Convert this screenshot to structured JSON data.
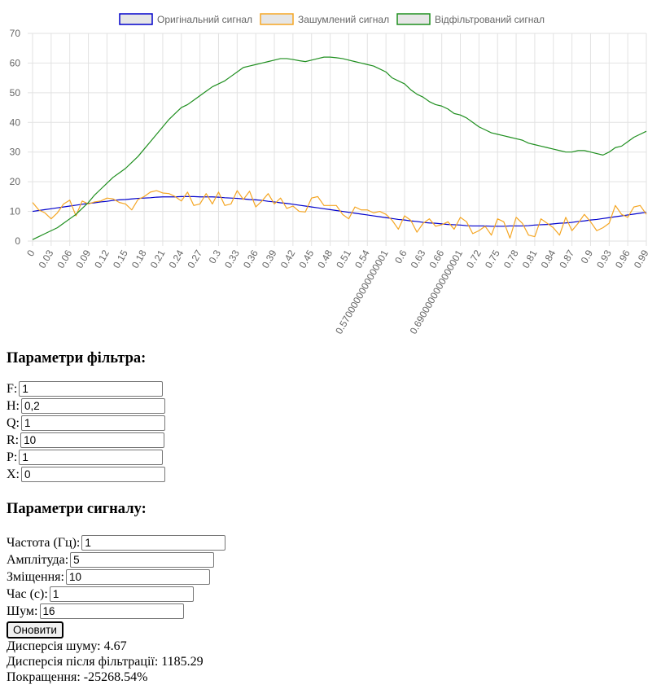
{
  "chart_data": {
    "type": "line",
    "ylim": [
      0,
      70
    ],
    "y_ticks": [
      0,
      10,
      20,
      30,
      40,
      50,
      60,
      70
    ],
    "x_tick_labels": [
      "0",
      "0.03",
      "0.06",
      "0.09",
      "0.12",
      "0.15",
      "0.18",
      "0.21",
      "0.24",
      "0.27",
      "0.3",
      "0.33",
      "0.36",
      "0.39",
      "0.42",
      "0.45",
      "0.48",
      "0.51",
      "0.54",
      "0.5700000000000001",
      "0.6",
      "0.63",
      "0.66",
      "0.6900000000000001",
      "0.72",
      "0.75",
      "0.78",
      "0.81",
      "0.84",
      "0.87",
      "0.9",
      "0.93",
      "0.96",
      "0.99"
    ],
    "x": [
      0,
      0.01,
      0.02,
      0.03,
      0.04,
      0.05,
      0.06,
      0.07,
      0.08,
      0.09,
      0.1,
      0.11,
      0.12,
      0.13,
      0.14,
      0.15,
      0.16,
      0.17,
      0.18,
      0.19,
      0.2,
      0.21,
      0.22,
      0.23,
      0.24,
      0.25,
      0.26,
      0.27,
      0.28,
      0.29,
      0.3,
      0.31,
      0.32,
      0.33,
      0.34,
      0.35,
      0.36,
      0.37,
      0.38,
      0.39,
      0.4,
      0.41,
      0.42,
      0.43,
      0.44,
      0.45,
      0.46,
      0.47,
      0.48,
      0.49,
      0.5,
      0.51,
      0.52,
      0.53,
      0.54,
      0.55,
      0.56,
      0.57,
      0.58,
      0.59,
      0.6,
      0.61,
      0.62,
      0.63,
      0.64,
      0.65,
      0.66,
      0.67,
      0.68,
      0.69,
      0.7,
      0.71,
      0.72,
      0.73,
      0.74,
      0.75,
      0.76,
      0.77,
      0.78,
      0.79,
      0.8,
      0.81,
      0.82,
      0.83,
      0.84,
      0.85,
      0.86,
      0.87,
      0.88,
      0.89,
      0.9,
      0.91,
      0.92,
      0.93,
      0.94,
      0.95,
      0.96,
      0.97,
      0.98,
      0.99
    ],
    "series": [
      {
        "name": "Оригінальний сигнал",
        "color": "#0000cc",
        "values": [
          10.0,
          10.3,
          10.6,
          10.9,
          11.2,
          11.5,
          11.8,
          12.1,
          12.4,
          12.7,
          12.9,
          13.2,
          13.4,
          13.7,
          13.9,
          14.0,
          14.2,
          14.4,
          14.5,
          14.6,
          14.8,
          14.9,
          14.9,
          14.9,
          15.0,
          15.0,
          15.0,
          14.9,
          14.9,
          14.9,
          14.8,
          14.6,
          14.5,
          14.4,
          14.2,
          14.0,
          13.9,
          13.7,
          13.4,
          13.2,
          12.9,
          12.7,
          12.4,
          12.1,
          11.8,
          11.5,
          11.2,
          10.9,
          10.6,
          10.3,
          10.0,
          9.7,
          9.4,
          9.1,
          8.8,
          8.5,
          8.2,
          7.9,
          7.6,
          7.3,
          7.1,
          6.8,
          6.6,
          6.3,
          6.1,
          6.0,
          5.8,
          5.6,
          5.5,
          5.4,
          5.2,
          5.1,
          5.1,
          5.1,
          5.0,
          5.0,
          5.0,
          5.1,
          5.1,
          5.1,
          5.2,
          5.4,
          5.5,
          5.6,
          5.8,
          6.0,
          6.1,
          6.3,
          6.6,
          6.8,
          7.1,
          7.3,
          7.6,
          7.9,
          8.2,
          8.5,
          8.8,
          9.1,
          9.4,
          9.7
        ]
      },
      {
        "name": "Зашумлений сигнал",
        "color": "#f5a623",
        "values": [
          13.0,
          10.5,
          9.5,
          7.5,
          9.5,
          12.5,
          13.8,
          8.5,
          13.5,
          12.5,
          13.2,
          13.5,
          14.5,
          14.2,
          13.0,
          12.5,
          10.5,
          14.0,
          15.0,
          16.5,
          17.0,
          16.2,
          16.0,
          15.0,
          13.5,
          16.5,
          12.0,
          12.5,
          16.0,
          12.5,
          16.5,
          12.0,
          12.5,
          17.0,
          14.0,
          16.8,
          11.5,
          13.5,
          16.0,
          12.5,
          14.5,
          11.0,
          11.8,
          10.0,
          9.8,
          14.5,
          15.0,
          12.0,
          12.0,
          12.0,
          9.0,
          7.5,
          11.5,
          10.5,
          10.5,
          9.5,
          10.0,
          9.0,
          7.0,
          4.0,
          8.5,
          7.0,
          3.0,
          6.0,
          7.5,
          5.0,
          5.5,
          6.5,
          4.0,
          8.0,
          6.5,
          2.5,
          3.5,
          5.0,
          2.0,
          7.5,
          6.5,
          1.0,
          8.0,
          6.0,
          2.0,
          1.5,
          7.5,
          6.0,
          4.5,
          2.0,
          8.0,
          3.5,
          6.0,
          9.0,
          6.5,
          3.5,
          4.5,
          6.0,
          12.0,
          9.0,
          8.0,
          11.5,
          12.0,
          9.0
        ]
      },
      {
        "name": "Відфільтрований сигнал",
        "color": "#1f8f1f",
        "values": [
          0.5,
          1.5,
          2.5,
          3.5,
          4.5,
          6.0,
          7.5,
          9.0,
          11.0,
          13.0,
          15.5,
          17.5,
          19.5,
          21.5,
          23.0,
          24.5,
          26.5,
          28.5,
          31.0,
          33.5,
          36.0,
          38.5,
          41.0,
          43.0,
          45.0,
          46.0,
          47.5,
          49.0,
          50.5,
          52.0,
          53.0,
          54.0,
          55.5,
          57.0,
          58.5,
          59.0,
          59.5,
          60.0,
          60.5,
          61.0,
          61.5,
          61.5,
          61.2,
          60.8,
          60.5,
          61.0,
          61.5,
          62.0,
          62.0,
          61.8,
          61.5,
          61.0,
          60.5,
          60.0,
          59.5,
          59.0,
          58.0,
          57.0,
          55.0,
          54.0,
          53.0,
          51.0,
          49.5,
          48.5,
          47.0,
          46.0,
          45.5,
          44.5,
          43.0,
          42.5,
          41.5,
          40.0,
          38.5,
          37.5,
          36.5,
          36.0,
          35.5,
          35.0,
          34.5,
          34.0,
          33.0,
          32.5,
          32.0,
          31.5,
          31.0,
          30.5,
          30.0,
          30.0,
          30.5,
          30.5,
          30.0,
          29.5,
          29.0,
          30.0,
          31.5,
          32.0,
          33.5,
          35.0,
          36.0,
          37.0
        ]
      }
    ]
  },
  "filter": {
    "title": "Параметри фільтра:",
    "params": [
      {
        "label": "F:",
        "value": "1"
      },
      {
        "label": "H:",
        "value": "0,2"
      },
      {
        "label": "Q:",
        "value": "1"
      },
      {
        "label": "R:",
        "value": "10"
      },
      {
        "label": "P:",
        "value": "1"
      },
      {
        "label": "X:",
        "value": "0"
      }
    ]
  },
  "signal": {
    "title": "Параметри сигналу:",
    "params": [
      {
        "label": "Частота (Гц):",
        "value": "1"
      },
      {
        "label": "Амплітуда:",
        "value": "5"
      },
      {
        "label": "Зміщення:",
        "value": "10"
      },
      {
        "label": "Час (с):",
        "value": "1"
      },
      {
        "label": "Шум:",
        "value": "16"
      }
    ]
  },
  "update_button": "Оновити",
  "stats": {
    "noise_variance": "Дисперсія шуму: 4.67",
    "filtered_variance": "Дисперсія після фільтрації: 1185.29",
    "improvement": "Покращення: -25268.54%"
  }
}
